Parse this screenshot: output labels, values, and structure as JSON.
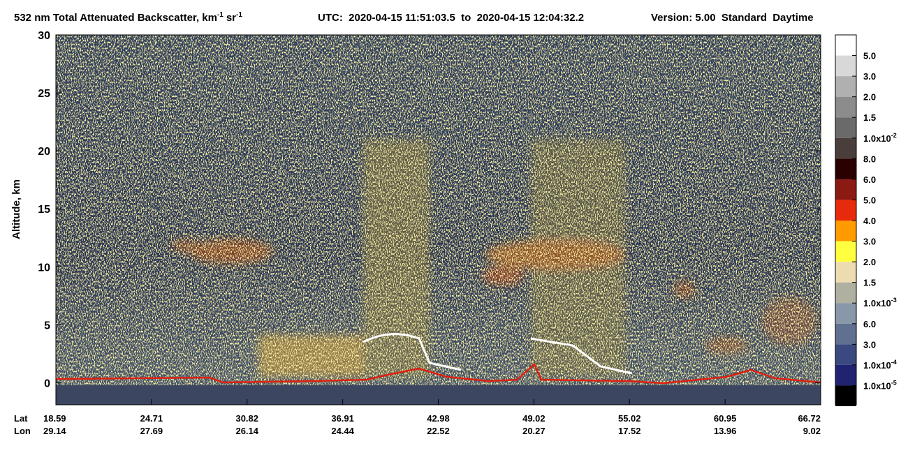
{
  "chart_data": {
    "type": "heatmap",
    "title": {
      "main": "532 nm Total Attenuated Backscatter, km",
      "sup1": "-1",
      "unit2": "sr",
      "sup2": "-1",
      "utc": "UTC:  2020-04-15 11:51:03.5  to  2020-04-15 12:04:32.2",
      "version": "Version: 5.00  Standard  Daytime"
    },
    "ylabel": "Altitude, km",
    "ylim": [
      -1.9,
      30
    ],
    "yticks": [
      0,
      5,
      10,
      15,
      20,
      25,
      30
    ],
    "x_tick_rows": [
      {
        "name": "Lat",
        "values": [
          18.59,
          24.71,
          30.82,
          36.91,
          42.98,
          49.02,
          55.02,
          60.95,
          66.72
        ]
      },
      {
        "name": "Lon",
        "values": [
          29.14,
          27.69,
          26.14,
          24.44,
          22.52,
          20.27,
          17.52,
          13.96,
          9.02
        ]
      }
    ],
    "colorbar": {
      "colors": [
        "#ffffff",
        "#d8d8d8",
        "#b0b0b0",
        "#8c8c8c",
        "#6a6a6a",
        "#4a3e3c",
        "#2a0000",
        "#8b1a12",
        "#e82a0c",
        "#ff9a00",
        "#ffff40",
        "#ecdcb0",
        "#b0b0a0",
        "#8898a8",
        "#607090",
        "#3a4a80",
        "#202470",
        "#000000"
      ],
      "labels": [
        {
          "text": "5.0"
        },
        {
          "text": "3.0"
        },
        {
          "text": "2.0"
        },
        {
          "text": "1.5"
        },
        {
          "text": "1.0x10",
          "sup": "-2"
        },
        {
          "text": "8.0"
        },
        {
          "text": "6.0"
        },
        {
          "text": "5.0"
        },
        {
          "text": "4.0"
        },
        {
          "text": "3.0"
        },
        {
          "text": "2.0"
        },
        {
          "text": "1.5"
        },
        {
          "text": "1.0x10",
          "sup": "-3"
        },
        {
          "text": "6.0"
        },
        {
          "text": "3.0"
        },
        {
          "text": "1.0x10",
          "sup": "-4"
        },
        {
          "text": "1.0x10",
          "sup": "-5"
        }
      ]
    }
  }
}
